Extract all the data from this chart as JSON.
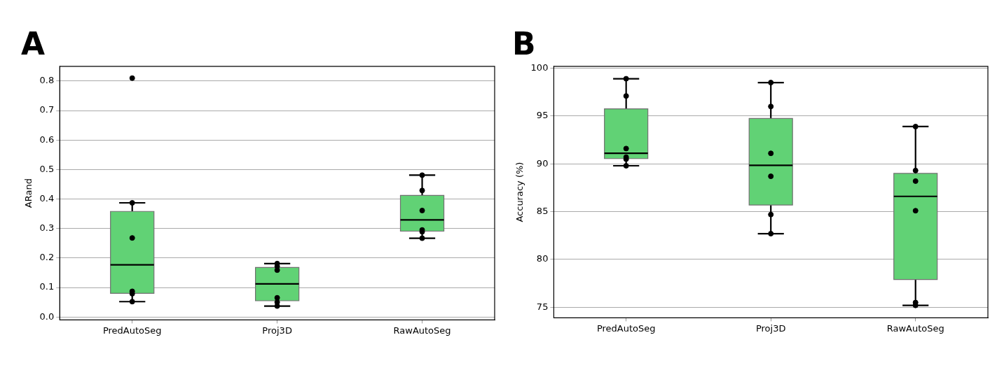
{
  "chart_data": [
    {
      "type": "box",
      "title": "A",
      "ylabel": "ARand",
      "categories": [
        "PredAutoSeg",
        "Proj3D",
        "RawAutoSeg"
      ],
      "color": "#61d275",
      "grid": "y",
      "ylim": [
        -0.01,
        0.85
      ],
      "yticks": [
        {
          "value": 0,
          "label": "0.0"
        },
        0.1,
        0.2,
        0.3,
        0.4,
        0.5,
        0.6,
        0.7,
        0.8
      ],
      "boxes": [
        {
          "low": 0.052,
          "q1": 0.08,
          "median": 0.177,
          "q3": 0.358,
          "high": 0.387
        },
        {
          "low": 0.037,
          "q1": 0.055,
          "median": 0.112,
          "q3": 0.168,
          "high": 0.181
        },
        {
          "low": 0.267,
          "q1": 0.291,
          "median": 0.329,
          "q3": 0.412,
          "high": 0.481
        }
      ],
      "series": [
        {
          "type": "scatter",
          "color": "#000000",
          "x": [
            "PredAutoSeg",
            "PredAutoSeg",
            "PredAutoSeg",
            "PredAutoSeg",
            "PredAutoSeg",
            "PredAutoSeg",
            "Proj3D",
            "Proj3D",
            "Proj3D",
            "Proj3D",
            "Proj3D",
            "Proj3D",
            "RawAutoSeg",
            "RawAutoSeg",
            "RawAutoSeg",
            "RawAutoSeg",
            "RawAutoSeg",
            "RawAutoSeg"
          ],
          "values": [
            0.81,
            0.387,
            0.268,
            0.087,
            0.079,
            0.052,
            0.181,
            0.172,
            0.159,
            0.065,
            0.05,
            0.037,
            0.481,
            0.429,
            0.361,
            0.295,
            0.289,
            0.267
          ]
        }
      ]
    },
    {
      "type": "box",
      "title": "B",
      "ylabel": "Accuracy (%)",
      "categories": [
        "PredAutoSeg",
        "Proj3D",
        "RawAutoSeg"
      ],
      "color": "#61d275",
      "grid": "y",
      "ylim": [
        73.9,
        100.2
      ],
      "yticks": [
        75,
        80,
        85,
        90,
        95,
        100
      ],
      "boxes": [
        {
          "low": 89.8,
          "q1": 90.55,
          "median": 91.1,
          "q3": 95.75,
          "high": 98.9
        },
        {
          "low": 82.7,
          "q1": 85.7,
          "median": 89.85,
          "q3": 94.75,
          "high": 98.5
        },
        {
          "low": 75.2,
          "q1": 77.9,
          "median": 86.6,
          "q3": 89.0,
          "high": 93.9
        }
      ],
      "series": [
        {
          "type": "scatter",
          "color": "#000000",
          "x": [
            "PredAutoSeg",
            "PredAutoSeg",
            "PredAutoSeg",
            "PredAutoSeg",
            "PredAutoSeg",
            "PredAutoSeg",
            "Proj3D",
            "Proj3D",
            "Proj3D",
            "Proj3D",
            "Proj3D",
            "Proj3D",
            "RawAutoSeg",
            "RawAutoSeg",
            "RawAutoSeg",
            "RawAutoSeg",
            "RawAutoSeg",
            "RawAutoSeg"
          ],
          "values": [
            98.9,
            97.1,
            91.6,
            90.7,
            90.5,
            89.8,
            98.5,
            96.0,
            91.1,
            88.7,
            84.7,
            82.7,
            93.9,
            89.3,
            88.2,
            85.1,
            75.5,
            75.2
          ]
        }
      ]
    }
  ]
}
